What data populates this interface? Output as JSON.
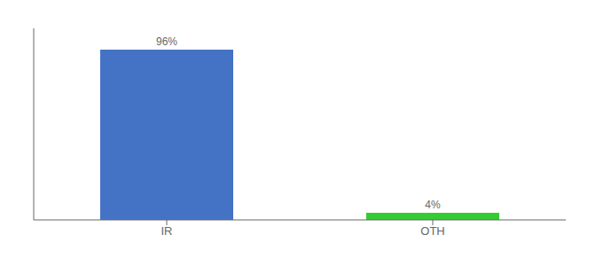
{
  "chart_data": {
    "type": "bar",
    "categories": [
      "IR",
      "OTH"
    ],
    "values": [
      96,
      4
    ],
    "value_labels": [
      "96%",
      "4%"
    ],
    "colors": [
      "#4472c4",
      "#33cc33"
    ],
    "ylim": [
      0,
      108
    ],
    "data_labels": true,
    "tick_labels": "x",
    "grid": false
  }
}
